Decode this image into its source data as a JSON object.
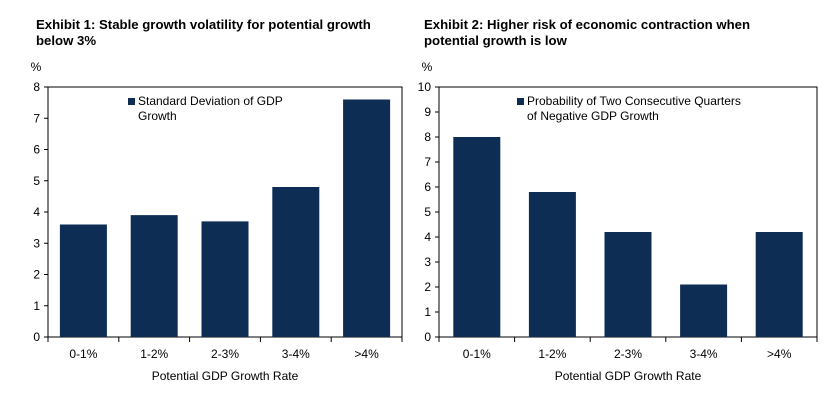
{
  "chart_data": [
    {
      "type": "bar",
      "title": "Exhibit 1:  Stable growth volatility for potential growth below 3%",
      "unit_label": "%",
      "xlabel": "Potential GDP Growth Rate",
      "ylabel": "",
      "categories": [
        "0-1%",
        "1-2%",
        "2-3%",
        "3-4%",
        ">4%"
      ],
      "values": [
        3.6,
        3.9,
        3.7,
        4.8,
        7.6
      ],
      "ylim": [
        0,
        8
      ],
      "yticks": [
        0,
        1,
        2,
        3,
        4,
        5,
        6,
        7,
        8
      ],
      "legend": {
        "line1": "Standard Deviation of GDP",
        "line2": "Growth",
        "position": "top-left"
      },
      "bar_color": "#0d2d55",
      "grid": false
    },
    {
      "type": "bar",
      "title": "Exhibit 2:  Higher risk of economic contraction when potential growth is low",
      "unit_label": "%",
      "xlabel": "Potential GDP Growth Rate",
      "ylabel": "",
      "categories": [
        "0-1%",
        "1-2%",
        "2-3%",
        "3-4%",
        ">4%"
      ],
      "values": [
        8.0,
        5.8,
        4.2,
        2.1,
        4.2
      ],
      "ylim": [
        0,
        10
      ],
      "yticks": [
        0,
        1,
        2,
        3,
        4,
        5,
        6,
        7,
        8,
        9,
        10
      ],
      "legend": {
        "line1": "Probability of Two Consecutive Quarters",
        "line2": "of Negative GDP Growth",
        "position": "top-center"
      },
      "bar_color": "#0d2d55",
      "grid": false
    }
  ]
}
